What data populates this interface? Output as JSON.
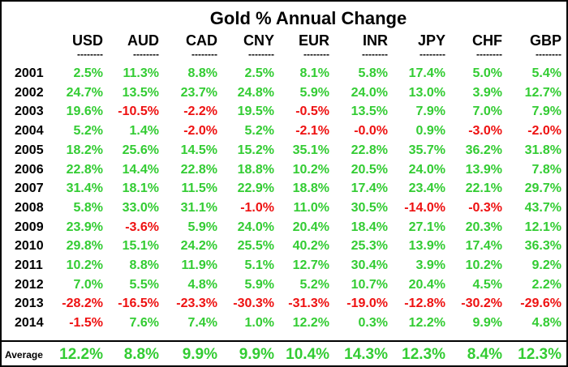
{
  "title": "Gold % Annual Change",
  "dash": "--------",
  "currencies": [
    "USD",
    "AUD",
    "CAD",
    "CNY",
    "EUR",
    "INR",
    "JPY",
    "CHF",
    "GBP"
  ],
  "rows": [
    {
      "year": "2001",
      "values": [
        "2.5%",
        "11.3%",
        "8.8%",
        "2.5%",
        "8.1%",
        "5.8%",
        "17.4%",
        "5.0%",
        "5.4%"
      ]
    },
    {
      "year": "2002",
      "values": [
        "24.7%",
        "13.5%",
        "23.7%",
        "24.8%",
        "5.9%",
        "24.0%",
        "13.0%",
        "3.9%",
        "12.7%"
      ]
    },
    {
      "year": "2003",
      "values": [
        "19.6%",
        "-10.5%",
        "-2.2%",
        "19.5%",
        "-0.5%",
        "13.5%",
        "7.9%",
        "7.0%",
        "7.9%"
      ]
    },
    {
      "year": "2004",
      "values": [
        "5.2%",
        "1.4%",
        "-2.0%",
        "5.2%",
        "-2.1%",
        "-0.0%",
        "0.9%",
        "-3.0%",
        "-2.0%"
      ]
    },
    {
      "year": "2005",
      "values": [
        "18.2%",
        "25.6%",
        "14.5%",
        "15.2%",
        "35.1%",
        "22.8%",
        "35.7%",
        "36.2%",
        "31.8%"
      ]
    },
    {
      "year": "2006",
      "values": [
        "22.8%",
        "14.4%",
        "22.8%",
        "18.8%",
        "10.2%",
        "20.5%",
        "24.0%",
        "13.9%",
        "7.8%"
      ]
    },
    {
      "year": "2007",
      "values": [
        "31.4%",
        "18.1%",
        "11.5%",
        "22.9%",
        "18.8%",
        "17.4%",
        "23.4%",
        "22.1%",
        "29.7%"
      ]
    },
    {
      "year": "2008",
      "values": [
        "5.8%",
        "33.0%",
        "31.1%",
        "-1.0%",
        "11.0%",
        "30.5%",
        "-14.0%",
        "-0.3%",
        "43.7%"
      ]
    },
    {
      "year": "2009",
      "values": [
        "23.9%",
        "-3.6%",
        "5.9%",
        "24.0%",
        "20.4%",
        "18.4%",
        "27.1%",
        "20.3%",
        "12.1%"
      ]
    },
    {
      "year": "2010",
      "values": [
        "29.8%",
        "15.1%",
        "24.2%",
        "25.5%",
        "40.2%",
        "25.3%",
        "13.9%",
        "17.4%",
        "36.3%"
      ]
    },
    {
      "year": "2011",
      "values": [
        "10.2%",
        "8.8%",
        "11.9%",
        "5.1%",
        "12.7%",
        "30.4%",
        "3.9%",
        "10.2%",
        "9.2%"
      ]
    },
    {
      "year": "2012",
      "values": [
        "7.0%",
        "5.5%",
        "4.8%",
        "5.9%",
        "5.2%",
        "10.7%",
        "20.4%",
        "4.5%",
        "2.2%"
      ]
    },
    {
      "year": "2013",
      "values": [
        "-28.2%",
        "-16.5%",
        "-23.3%",
        "-30.3%",
        "-31.3%",
        "-19.0%",
        "-12.8%",
        "-30.2%",
        "-29.6%"
      ]
    },
    {
      "year": "2014",
      "values": [
        "-1.5%",
        "7.6%",
        "7.4%",
        "1.0%",
        "12.2%",
        "0.3%",
        "12.2%",
        "9.9%",
        "4.8%"
      ]
    }
  ],
  "average": {
    "label": "Average",
    "values": [
      "12.2%",
      "8.8%",
      "9.9%",
      "9.9%",
      "10.4%",
      "14.3%",
      "12.3%",
      "8.4%",
      "12.3%"
    ]
  },
  "colors": {
    "positive": "#33cc33",
    "negative": "#ee1111",
    "text": "#000000",
    "background": "#ffffff"
  }
}
